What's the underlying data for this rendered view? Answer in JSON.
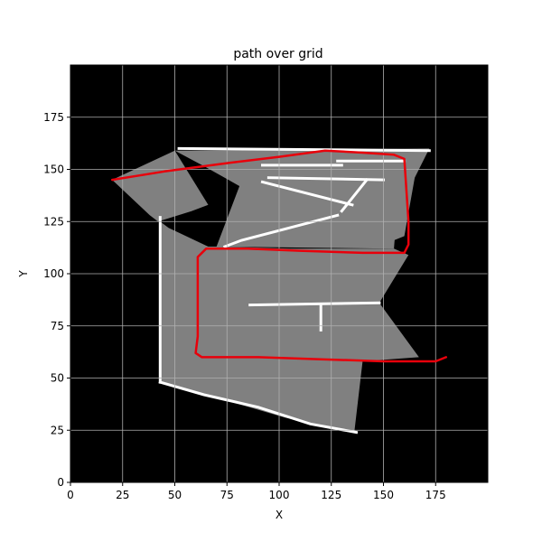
{
  "chart_data": {
    "type": "heatmap",
    "title": "path over grid",
    "xlabel": "X",
    "ylabel": "Y",
    "xlim": [
      0,
      200
    ],
    "ylim": [
      0,
      200
    ],
    "x_ticks": [
      0,
      25,
      50,
      75,
      100,
      125,
      150,
      175
    ],
    "y_ticks": [
      0,
      25,
      50,
      75,
      100,
      125,
      150,
      175
    ],
    "grid": true,
    "legend": "none",
    "grid_cell_states": {
      "unknown": "#000000",
      "free": "#808080",
      "occupied": "#ffffff"
    },
    "free_regions": [
      {
        "name": "upper-left wedge",
        "polygon": [
          [
            20,
            145
          ],
          [
            50,
            159
          ],
          [
            66,
            133
          ],
          [
            58,
            130
          ],
          [
            42,
            125
          ],
          [
            38,
            128
          ]
        ]
      },
      {
        "name": "upper middle fan",
        "polygon": [
          [
            50,
            159
          ],
          [
            172,
            160
          ],
          [
            158,
            150
          ],
          [
            155,
            112
          ],
          [
            70,
            113
          ],
          [
            81,
            142
          ],
          [
            65,
            151
          ]
        ]
      },
      {
        "name": "top right fan",
        "polygon": [
          [
            158,
            152
          ],
          [
            172,
            160
          ],
          [
            165,
            146
          ],
          [
            160,
            118
          ],
          [
            155,
            116
          ]
        ]
      },
      {
        "name": "main room",
        "polygon": [
          [
            43,
            125
          ],
          [
            47,
            122
          ],
          [
            66,
            113
          ],
          [
            75,
            113
          ],
          [
            105,
            112
          ],
          [
            155,
            112
          ],
          [
            162,
            109
          ],
          [
            148,
            86
          ],
          [
            167,
            60
          ],
          [
            140,
            58
          ],
          [
            136,
            24
          ],
          [
            103,
            31
          ],
          [
            79,
            38
          ],
          [
            43,
            48
          ]
        ]
      }
    ],
    "walls": [
      {
        "name": "left wall",
        "points": [
          [
            43,
            127
          ],
          [
            43,
            48
          ]
        ]
      },
      {
        "name": "bottom slanted wall",
        "points": [
          [
            43,
            48
          ],
          [
            64,
            42
          ],
          [
            90,
            36
          ],
          [
            115,
            28
          ],
          [
            137,
            24
          ]
        ]
      },
      {
        "name": "top wall",
        "points": [
          [
            52,
            160
          ],
          [
            172,
            159
          ]
        ]
      },
      {
        "name": "upper diagonal wall",
        "points": [
          [
            74,
            113
          ],
          [
            82,
            116
          ],
          [
            105,
            122
          ],
          [
            128,
            128
          ]
        ]
      },
      {
        "name": "middle horizontal wall",
        "points": [
          [
            86,
            85
          ],
          [
            148,
            86
          ]
        ]
      },
      {
        "name": "middle wall post",
        "points": [
          [
            120,
            85
          ],
          [
            120,
            73
          ]
        ]
      },
      {
        "name": "inner wall segment 1",
        "points": [
          [
            92,
            152
          ],
          [
            130,
            152
          ]
        ]
      },
      {
        "name": "inner wall segment 2",
        "points": [
          [
            95,
            146
          ],
          [
            150,
            145
          ]
        ]
      },
      {
        "name": "inner wall segment 3",
        "points": [
          [
            92,
            144
          ],
          [
            135,
            133
          ]
        ]
      },
      {
        "name": "inner wall segment 4",
        "points": [
          [
            128,
            154
          ],
          [
            160,
            154
          ]
        ]
      },
      {
        "name": "inner wall segment 5",
        "points": [
          [
            130,
            130
          ],
          [
            142,
            145
          ]
        ]
      }
    ],
    "series": [
      {
        "name": "",
        "type": "line",
        "color": "#e8000b",
        "points": [
          [
            20,
            145
          ],
          [
            45,
            149
          ],
          [
            75,
            153
          ],
          [
            100,
            156
          ],
          [
            122,
            159
          ],
          [
            140,
            158
          ],
          [
            155,
            157
          ],
          [
            160,
            155
          ],
          [
            161,
            140
          ],
          [
            162,
            125
          ],
          [
            162,
            114
          ],
          [
            160,
            110
          ],
          [
            140,
            110
          ],
          [
            110,
            111
          ],
          [
            85,
            112
          ],
          [
            65,
            112
          ],
          [
            61,
            108
          ],
          [
            61,
            90
          ],
          [
            61,
            70
          ],
          [
            60,
            62
          ],
          [
            63,
            60
          ],
          [
            90,
            60
          ],
          [
            120,
            59
          ],
          [
            150,
            58
          ],
          [
            175,
            58
          ],
          [
            180,
            60
          ]
        ]
      }
    ]
  }
}
